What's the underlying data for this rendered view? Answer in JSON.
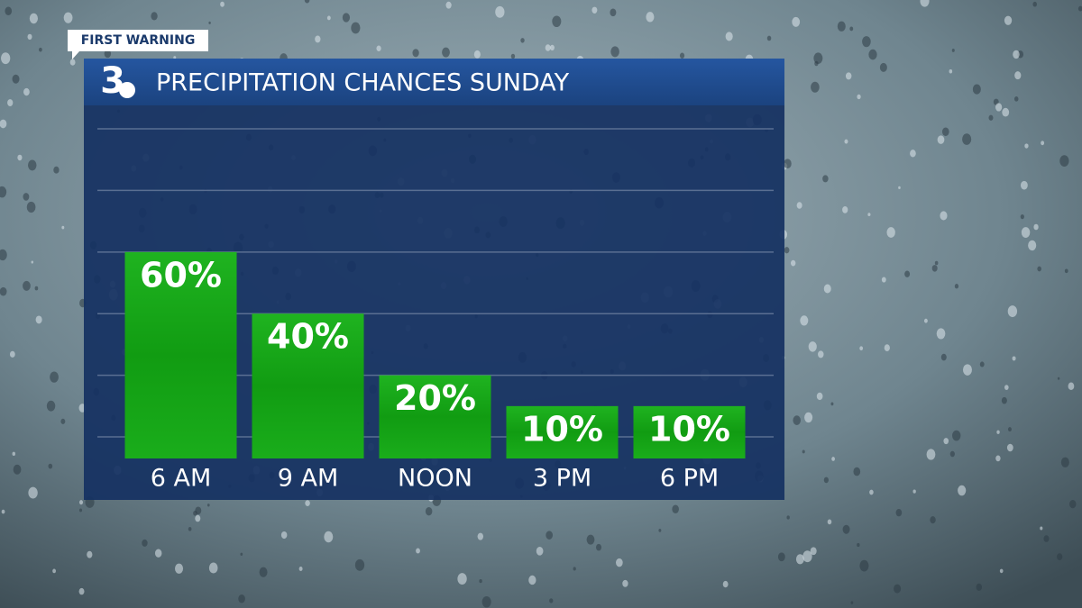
{
  "chart_data": {
    "type": "bar",
    "badge": "FIRST WARNING",
    "logo": "3",
    "title": "PRECIPITATION CHANCES SUNDAY",
    "categories": [
      "6 AM",
      "9 AM",
      "NOON",
      "3 PM",
      "6 PM"
    ],
    "values": [
      60,
      40,
      20,
      10,
      10
    ],
    "value_labels": [
      "60%",
      "40%",
      "20%",
      "10%",
      "10%"
    ],
    "color": "#17a81a",
    "ylim": [
      -7,
      100
    ],
    "yticks": [
      0,
      20,
      40,
      60,
      80,
      100
    ],
    "grid": true
  }
}
